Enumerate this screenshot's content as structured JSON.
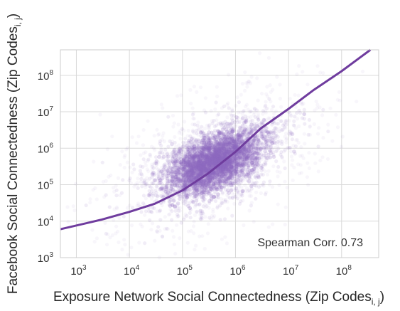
{
  "chart_data": {
    "type": "scatter",
    "title": "",
    "xlabel": "Exposure Network Social Connectedness (Zip Codes",
    "xlabel_subscript": "i, j",
    "xlabel_close": ")",
    "ylabel": "Facebook Social Connectedness (Zip Codes",
    "ylabel_subscript": "i, j",
    "ylabel_close": ")",
    "x_scale": "log",
    "y_scale": "log",
    "xlim": [
      500,
      500000000.0
    ],
    "ylim": [
      1000,
      500000000.0
    ],
    "grid": true,
    "x_ticks": [
      {
        "base": "10",
        "exp": "3",
        "value": 1000
      },
      {
        "base": "10",
        "exp": "4",
        "value": 10000
      },
      {
        "base": "10",
        "exp": "5",
        "value": 100000
      },
      {
        "base": "10",
        "exp": "6",
        "value": 1000000
      },
      {
        "base": "10",
        "exp": "7",
        "value": 10000000
      },
      {
        "base": "10",
        "exp": "8",
        "value": 100000000
      }
    ],
    "y_ticks": [
      {
        "base": "10",
        "exp": "3",
        "value": 1000
      },
      {
        "base": "10",
        "exp": "4",
        "value": 10000
      },
      {
        "base": "10",
        "exp": "5",
        "value": 100000
      },
      {
        "base": "10",
        "exp": "6",
        "value": 1000000
      },
      {
        "base": "10",
        "exp": "7",
        "value": 10000000
      },
      {
        "base": "10",
        "exp": "8",
        "value": 100000000
      }
    ],
    "scatter_cloud": {
      "color": "#8e6bbd",
      "center_x": 400000,
      "center_y": 400000,
      "note_dense_core_x_range": [
        30000,
        5000000
      ],
      "note_dense_core_y_range": [
        10000,
        5000000
      ]
    },
    "fit_line": {
      "color": "#6f3c9e",
      "points": [
        {
          "x": 500,
          "y": 6000
        },
        {
          "x": 3000,
          "y": 11000
        },
        {
          "x": 10000,
          "y": 18000
        },
        {
          "x": 30000,
          "y": 30000
        },
        {
          "x": 100000,
          "y": 70000
        },
        {
          "x": 300000,
          "y": 200000
        },
        {
          "x": 1000000,
          "y": 800000
        },
        {
          "x": 3000000,
          "y": 3500000
        },
        {
          "x": 10000000,
          "y": 12000000
        },
        {
          "x": 30000000,
          "y": 40000000
        },
        {
          "x": 100000000,
          "y": 130000000
        },
        {
          "x": 350000000,
          "y": 500000000
        }
      ]
    },
    "annotation": "Spearman Corr. 0.73"
  }
}
